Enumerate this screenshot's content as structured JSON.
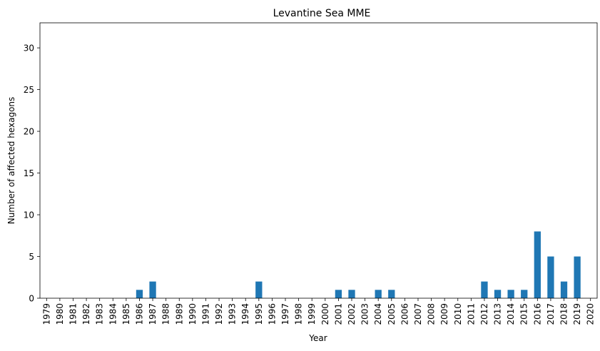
{
  "chart_data": {
    "type": "bar",
    "title": "Levantine Sea MME",
    "xlabel": "Year",
    "ylabel": "Number of affected hexagons",
    "ylim": [
      0,
      33
    ],
    "yticks": [
      0,
      5,
      10,
      15,
      20,
      25,
      30
    ],
    "grid": false,
    "legend": "none",
    "bar_color": "#1f77b4",
    "categories": [
      "1979",
      "1980",
      "1981",
      "1982",
      "1983",
      "1984",
      "1985",
      "1986",
      "1987",
      "1988",
      "1989",
      "1990",
      "1991",
      "1992",
      "1993",
      "1994",
      "1995",
      "1996",
      "1997",
      "1998",
      "1999",
      "2000",
      "2001",
      "2002",
      "2003",
      "2004",
      "2005",
      "2006",
      "2007",
      "2008",
      "2009",
      "2010",
      "2011",
      "2012",
      "2013",
      "2014",
      "2015",
      "2016",
      "2017",
      "2018",
      "2019",
      "2020"
    ],
    "values": [
      0,
      0,
      0,
      0,
      0,
      0,
      0,
      1,
      2,
      0,
      0,
      0,
      0,
      0,
      0,
      0,
      2,
      0,
      0,
      0,
      0,
      0,
      1,
      1,
      0,
      1,
      1,
      0,
      0,
      0,
      0,
      0,
      0,
      2,
      1,
      1,
      1,
      8,
      5,
      2,
      5,
      0
    ]
  }
}
